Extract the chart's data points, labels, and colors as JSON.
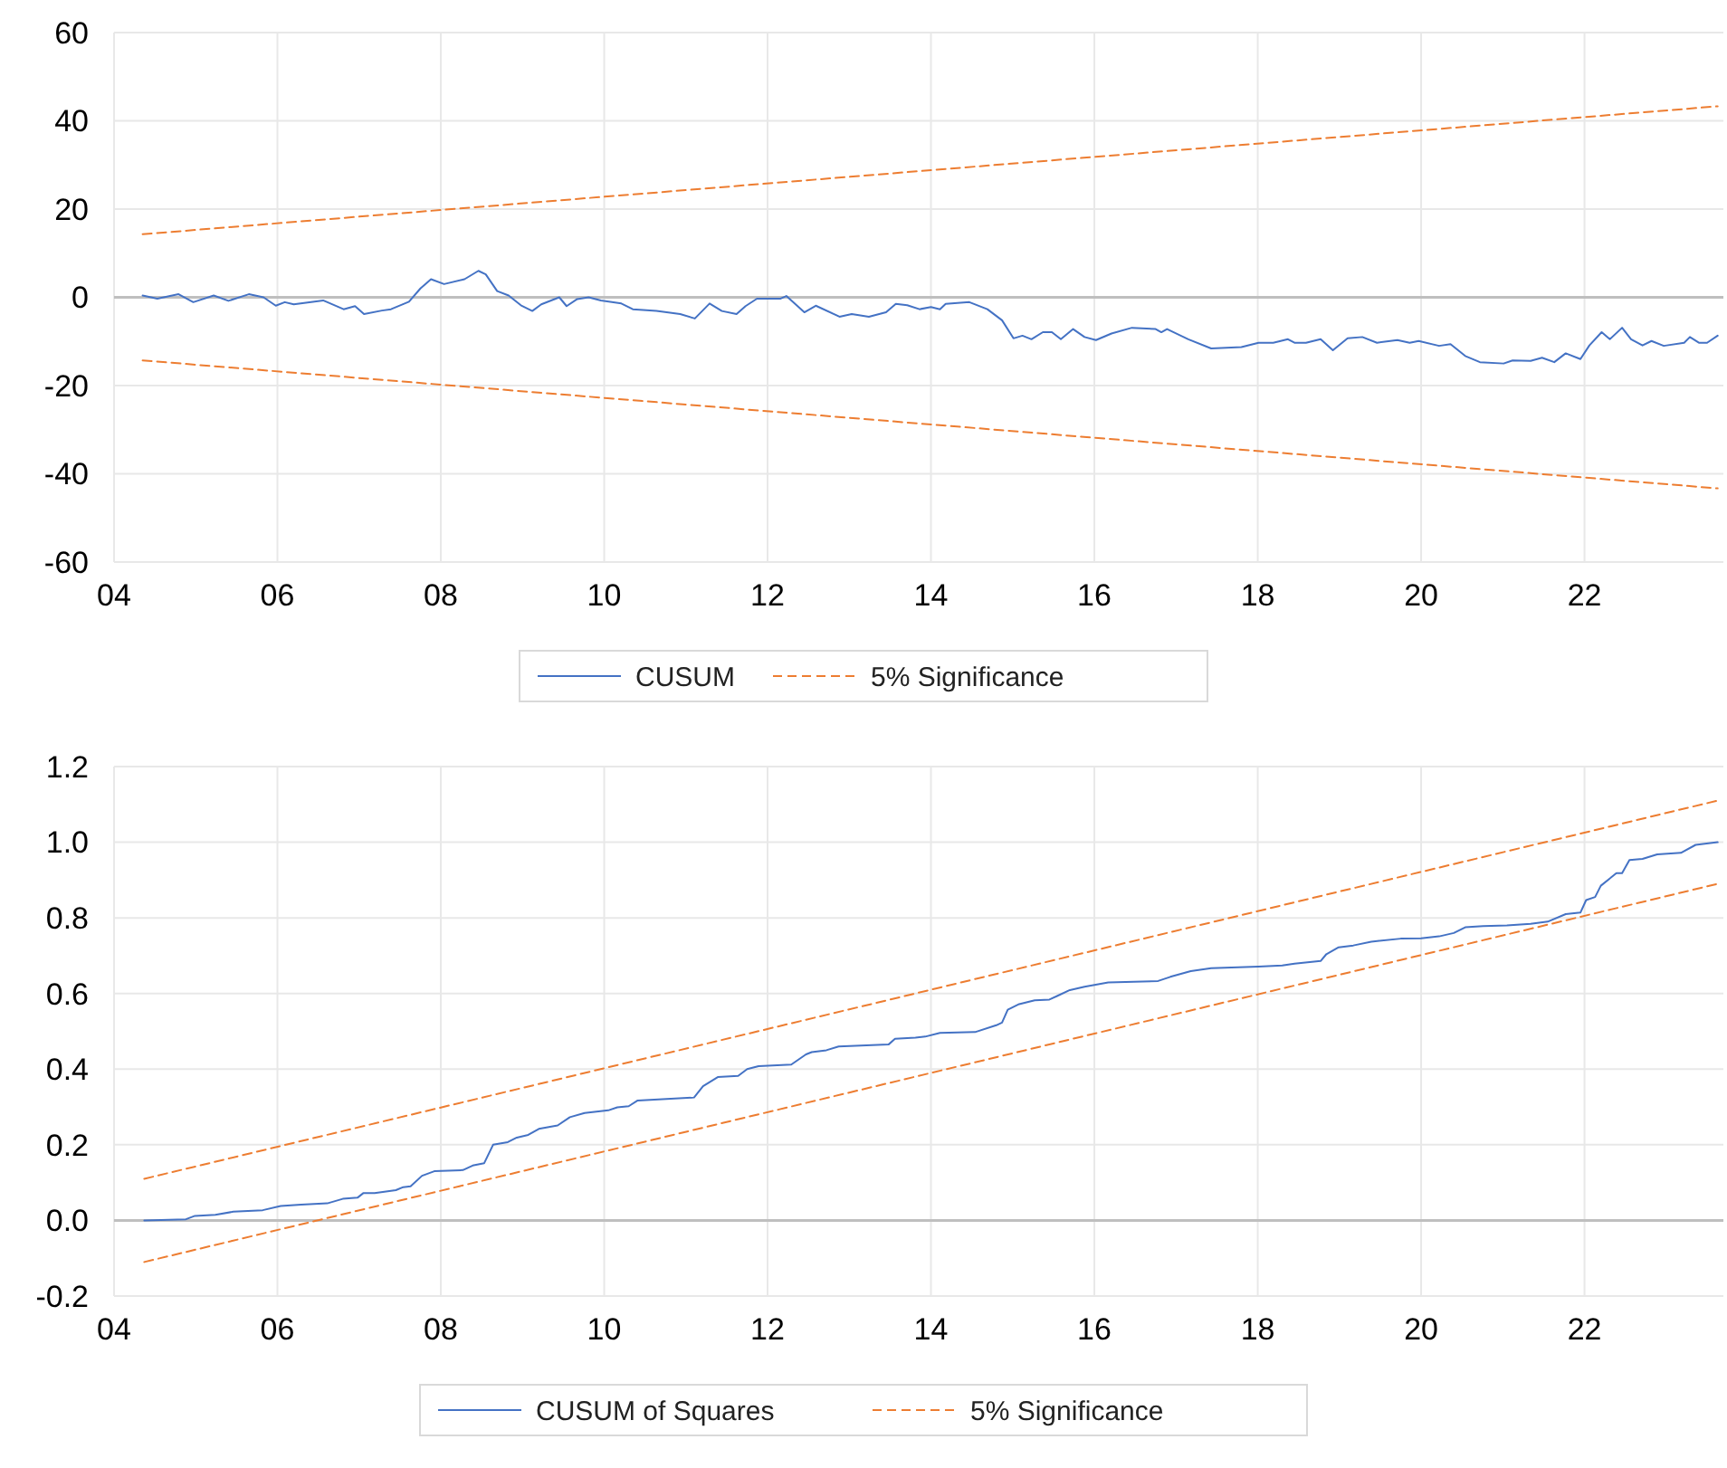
{
  "chart_data": [
    {
      "type": "line",
      "xlim": [
        2004,
        2023.7
      ],
      "xticks": [
        {
          "value": 2004,
          "label": "04"
        },
        {
          "value": 2006,
          "label": "06"
        },
        {
          "value": 2008,
          "label": "08"
        },
        {
          "value": 2010,
          "label": "10"
        },
        {
          "value": 2012,
          "label": "12"
        },
        {
          "value": 2014,
          "label": "14"
        },
        {
          "value": 2016,
          "label": "16"
        },
        {
          "value": 2018,
          "label": "18"
        },
        {
          "value": 2020,
          "label": "20"
        },
        {
          "value": 2022,
          "label": "22"
        }
      ],
      "ylim": [
        -60,
        60
      ],
      "yticks": [
        -60,
        -40,
        -20,
        0,
        20,
        40,
        60
      ],
      "grid": true,
      "legend": "bottom",
      "ref_lines": [
        {
          "axis": "y",
          "value": 0,
          "color": "#bfbfbf"
        }
      ],
      "series": [
        {
          "name": "CUSUM",
          "color": "#4472c4",
          "line_style": "solid",
          "x": [
            2004.35,
            2004.53,
            2004.79,
            2004.97,
            2005.22,
            2005.4,
            2005.65,
            2005.83,
            2005.98,
            2006.09,
            2006.2,
            2006.56,
            2006.81,
            2006.95,
            2007.06,
            2007.28,
            2007.39,
            2007.61,
            2007.75,
            2007.88,
            2008.04,
            2008.29,
            2008.46,
            2008.55,
            2008.69,
            2008.83,
            2008.98,
            2009.12,
            2009.23,
            2009.45,
            2009.54,
            2009.67,
            2009.81,
            2009.96,
            2010.21,
            2010.35,
            2010.64,
            2010.93,
            2011.11,
            2011.29,
            2011.44,
            2011.62,
            2011.73,
            2011.87,
            2012.16,
            2012.23,
            2012.45,
            2012.59,
            2012.88,
            2013.03,
            2013.24,
            2013.45,
            2013.57,
            2013.71,
            2013.86,
            2014.0,
            2014.11,
            2014.18,
            2014.47,
            2014.69,
            2014.87,
            2015.01,
            2015.12,
            2015.23,
            2015.37,
            2015.48,
            2015.59,
            2015.74,
            2015.88,
            2016.02,
            2016.21,
            2016.46,
            2016.75,
            2016.82,
            2016.89,
            2017.15,
            2017.43,
            2017.8,
            2018.01,
            2018.19,
            2018.37,
            2018.45,
            2018.59,
            2018.77,
            2018.92,
            2019.1,
            2019.28,
            2019.46,
            2019.71,
            2019.86,
            2019.97,
            2020.22,
            2020.36,
            2020.54,
            2020.72,
            2021.01,
            2021.12,
            2021.34,
            2021.48,
            2021.63,
            2021.77,
            2021.95,
            2022.06,
            2022.21,
            2022.31,
            2022.46,
            2022.57,
            2022.71,
            2022.82,
            2022.97,
            2023.22,
            2023.29,
            2023.4,
            2023.5,
            2023.63
          ],
          "values": [
            0.4,
            -0.3,
            0.7,
            -1.1,
            0.4,
            -0.8,
            0.7,
            0,
            -1.9,
            -1.1,
            -1.6,
            -0.7,
            -2.7,
            -2,
            -3.8,
            -3,
            -2.7,
            -1,
            2,
            4.1,
            3,
            4.1,
            6,
            5.2,
            1.4,
            0.4,
            -1.8,
            -3.1,
            -1.6,
            0,
            -2,
            -0.4,
            0,
            -0.7,
            -1.4,
            -2.7,
            -3.1,
            -3.8,
            -4.8,
            -1.4,
            -3.1,
            -3.8,
            -2,
            -0.3,
            -0.3,
            0.3,
            -3.4,
            -1.9,
            -4.4,
            -3.8,
            -4.4,
            -3.4,
            -1.5,
            -1.8,
            -2.7,
            -2.2,
            -2.7,
            -1.5,
            -1.1,
            -2.7,
            -5.2,
            -9.3,
            -8.7,
            -9.5,
            -7.9,
            -7.9,
            -9.5,
            -7.2,
            -9,
            -9.7,
            -8.2,
            -6.9,
            -7.2,
            -7.9,
            -7.2,
            -9.5,
            -11.6,
            -11.3,
            -10.3,
            -10.3,
            -9.5,
            -10.3,
            -10.3,
            -9.5,
            -12,
            -9.3,
            -9,
            -10.3,
            -9.7,
            -10.3,
            -9.9,
            -11,
            -10.6,
            -13.3,
            -14.7,
            -15,
            -14.3,
            -14.4,
            -13.7,
            -14.7,
            -12.7,
            -14,
            -10.9,
            -7.9,
            -9.5,
            -6.9,
            -9.5,
            -10.9,
            -9.9,
            -11,
            -10.3,
            -9,
            -10.3,
            -10.3,
            -8.7
          ]
        },
        {
          "name": "5% Significance",
          "color": "#ed7d31",
          "line_style": "dashed",
          "x": [
            2004.35,
            2023.63
          ],
          "values": [
            14.3,
            43.3
          ]
        },
        {
          "color": "#ed7d31",
          "line_style": "dashed",
          "x": [
            2004.35,
            2023.63
          ],
          "values": [
            -14.3,
            -43.3
          ]
        }
      ]
    },
    {
      "type": "line",
      "xlim": [
        2004,
        2023.7
      ],
      "xticks": [
        {
          "value": 2004,
          "label": "04"
        },
        {
          "value": 2006,
          "label": "06"
        },
        {
          "value": 2008,
          "label": "08"
        },
        {
          "value": 2010,
          "label": "10"
        },
        {
          "value": 2012,
          "label": "12"
        },
        {
          "value": 2014,
          "label": "14"
        },
        {
          "value": 2016,
          "label": "16"
        },
        {
          "value": 2018,
          "label": "18"
        },
        {
          "value": 2020,
          "label": "20"
        },
        {
          "value": 2022,
          "label": "22"
        }
      ],
      "ylim": [
        -0.2,
        1.2
      ],
      "yticks": [
        -0.2,
        {
          "value": 0,
          "label": "0.0"
        },
        0.2,
        0.4,
        0.6,
        0.8,
        {
          "value": 1,
          "label": "1.0"
        },
        1.2
      ],
      "grid": true,
      "legend": "bottom",
      "ref_lines": [
        {
          "axis": "y",
          "value": 0,
          "color": "#bfbfbf"
        }
      ],
      "series": [
        {
          "name": "CUSUM of Squares",
          "color": "#4472c4",
          "line_style": "solid",
          "x": [
            2004.37,
            2004.88,
            2004.99,
            2005.24,
            2005.46,
            2005.82,
            2006.04,
            2006.29,
            2006.61,
            2006.8,
            2006.98,
            2007.05,
            2007.19,
            2007.45,
            2007.54,
            2007.63,
            2007.77,
            2007.92,
            2008.27,
            2008.39,
            2008.53,
            2008.64,
            2008.82,
            2008.93,
            2009.07,
            2009.2,
            2009.43,
            2009.58,
            2009.76,
            2010.05,
            2010.16,
            2010.3,
            2010.41,
            2011.1,
            2011.21,
            2011.39,
            2011.64,
            2011.75,
            2011.89,
            2012.29,
            2012.47,
            2012.54,
            2012.72,
            2012.87,
            2013.48,
            2013.56,
            2013.81,
            2013.93,
            2014.11,
            2014.54,
            2014.8,
            2014.87,
            2014.94,
            2015.08,
            2015.27,
            2015.45,
            2015.55,
            2015.7,
            2015.88,
            2016.17,
            2016.78,
            2016.93,
            2017.18,
            2017.43,
            2018.01,
            2018.3,
            2018.45,
            2018.77,
            2018.84,
            2018.99,
            2019.17,
            2019.39,
            2019.75,
            2020.0,
            2020.22,
            2020.4,
            2020.54,
            2020.76,
            2021.05,
            2021.34,
            2021.55,
            2021.77,
            2021.95,
            2022.02,
            2022.13,
            2022.2,
            2022.39,
            2022.46,
            2022.55,
            2022.71,
            2022.89,
            2023.18,
            2023.36,
            2023.63
          ],
          "values": [
            0,
            0.003,
            0.012,
            0.015,
            0.023,
            0.027,
            0.038,
            0.042,
            0.045,
            0.057,
            0.06,
            0.072,
            0.072,
            0.08,
            0.088,
            0.09,
            0.118,
            0.13,
            0.133,
            0.145,
            0.151,
            0.2,
            0.207,
            0.219,
            0.226,
            0.242,
            0.251,
            0.273,
            0.284,
            0.291,
            0.299,
            0.302,
            0.317,
            0.325,
            0.355,
            0.379,
            0.382,
            0.4,
            0.408,
            0.412,
            0.439,
            0.445,
            0.45,
            0.46,
            0.465,
            0.48,
            0.483,
            0.486,
            0.496,
            0.498,
            0.516,
            0.523,
            0.557,
            0.572,
            0.582,
            0.584,
            0.594,
            0.609,
            0.618,
            0.629,
            0.633,
            0.644,
            0.659,
            0.667,
            0.671,
            0.674,
            0.679,
            0.686,
            0.704,
            0.722,
            0.727,
            0.737,
            0.745,
            0.746,
            0.751,
            0.76,
            0.775,
            0.778,
            0.78,
            0.784,
            0.79,
            0.81,
            0.814,
            0.847,
            0.855,
            0.885,
            0.918,
            0.918,
            0.953,
            0.956,
            0.968,
            0.972,
            0.993,
            1.0
          ]
        },
        {
          "name": "5% Significance",
          "color": "#ed7d31",
          "line_style": "dashed",
          "x": [
            2004.37,
            2023.63
          ],
          "values": [
            0.11,
            1.11
          ]
        },
        {
          "color": "#ed7d31",
          "line_style": "dashed",
          "x": [
            2004.37,
            2023.63
          ],
          "values": [
            -0.11,
            0.89
          ]
        }
      ]
    }
  ]
}
